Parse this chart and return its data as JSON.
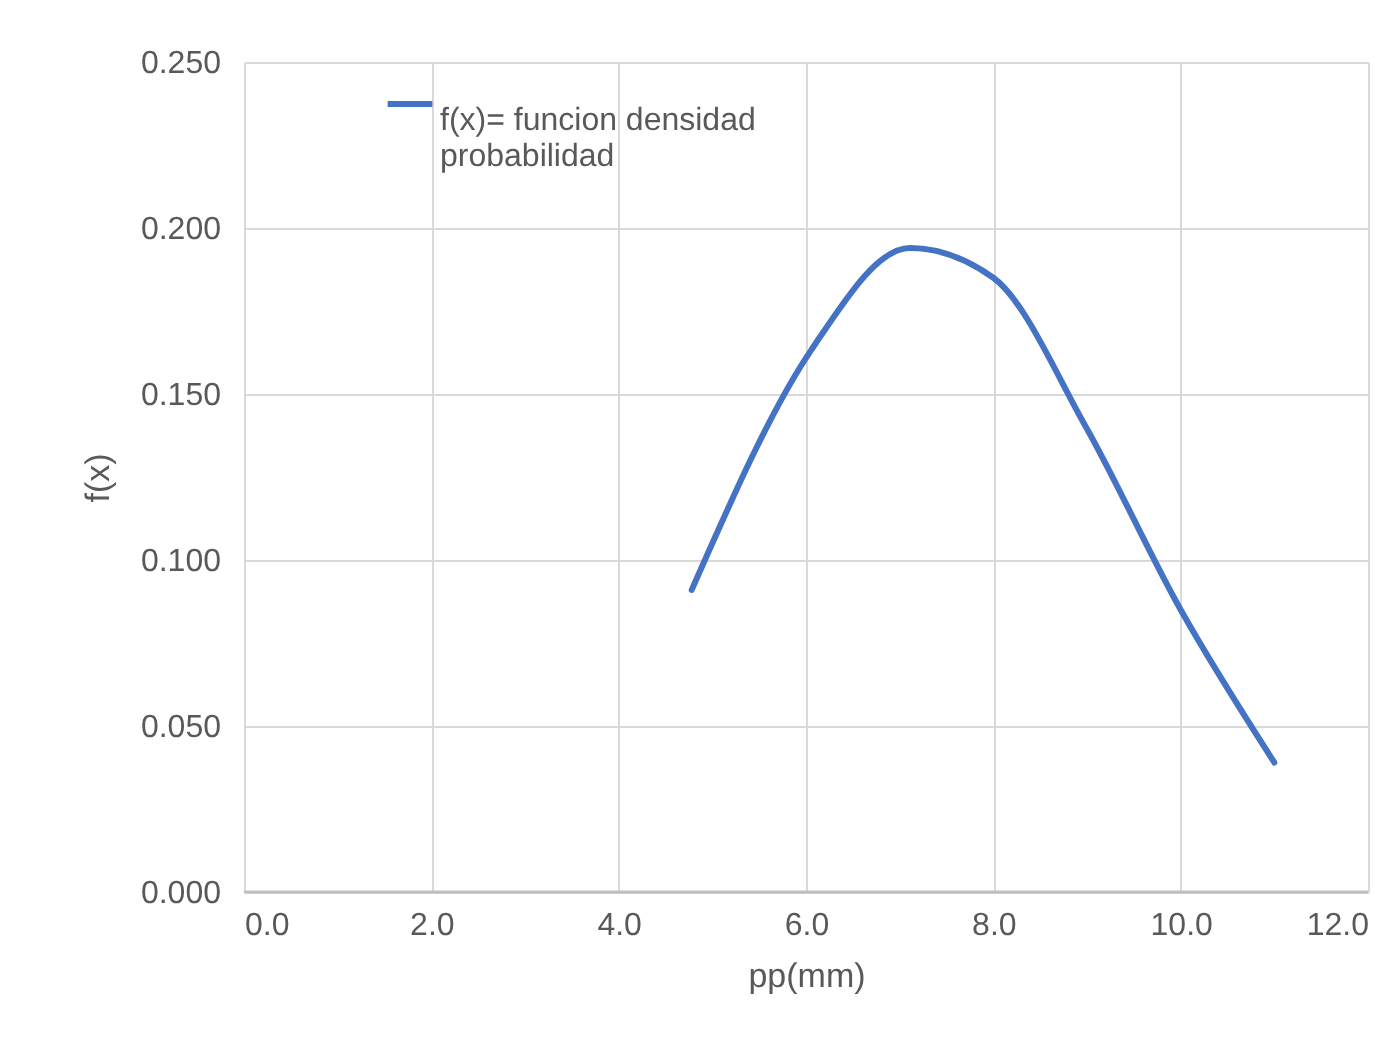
{
  "chart_data": {
    "type": "line",
    "xlabel": "pp(mm)",
    "ylabel": "f(x)",
    "x": [
      4.78,
      6.05,
      7.11,
      8.0,
      8.99,
      10.0,
      11.0
    ],
    "series": [
      {
        "name": "f(x)= funcion  densidad probabilidad",
        "color": "#4472c4",
        "values": [
          0.091,
          0.163,
          0.194,
          0.185,
          0.14,
          0.085,
          0.039
        ]
      }
    ],
    "xlim": [
      0,
      12
    ],
    "xticks": [
      {
        "value": 0,
        "label": "0.0"
      },
      {
        "value": 2,
        "label": "2.0"
      },
      {
        "value": 4,
        "label": "4.0"
      },
      {
        "value": 6,
        "label": "6.0"
      },
      {
        "value": 8,
        "label": "8.0"
      },
      {
        "value": 10,
        "label": "10.0"
      },
      {
        "value": 12,
        "label": "12.0"
      }
    ],
    "ylim": [
      0,
      0.25
    ],
    "yticks": [
      {
        "value": 0,
        "label": "0.000"
      },
      {
        "value": 0.05,
        "label": "0.050"
      },
      {
        "value": 0.1,
        "label": "0.100"
      },
      {
        "value": 0.15,
        "label": "0.150"
      },
      {
        "value": 0.2,
        "label": "0.200"
      },
      {
        "value": 0.25,
        "label": "0.250"
      }
    ],
    "grid": true,
    "legend": "top left",
    "marker": "none",
    "line_style": "solid"
  }
}
